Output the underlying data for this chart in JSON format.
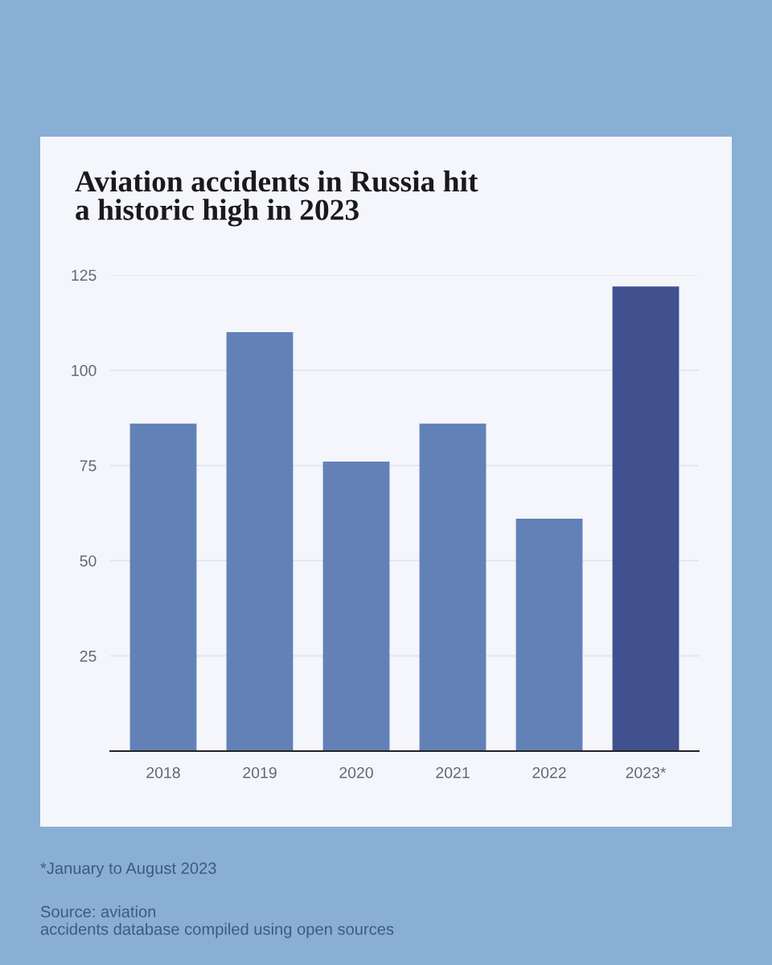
{
  "chart_data": {
    "type": "bar",
    "title": "Aviation accidents in Russia hit\na historic high in 2023",
    "categories": [
      "2018",
      "2019",
      "2020",
      "2021",
      "2022",
      "2023*"
    ],
    "values": [
      86,
      110,
      76,
      86,
      61,
      122
    ],
    "colors": [
      "#6281b7",
      "#6281b7",
      "#6281b7",
      "#6281b7",
      "#6281b7",
      "#41508f"
    ],
    "ylim": [
      0,
      125
    ],
    "yticks": [
      25,
      50,
      75,
      100,
      125
    ],
    "grid": "y",
    "annotations": [
      "*January to August 2023",
      "Source: aviation\naccidents database compiled using open sources"
    ]
  }
}
